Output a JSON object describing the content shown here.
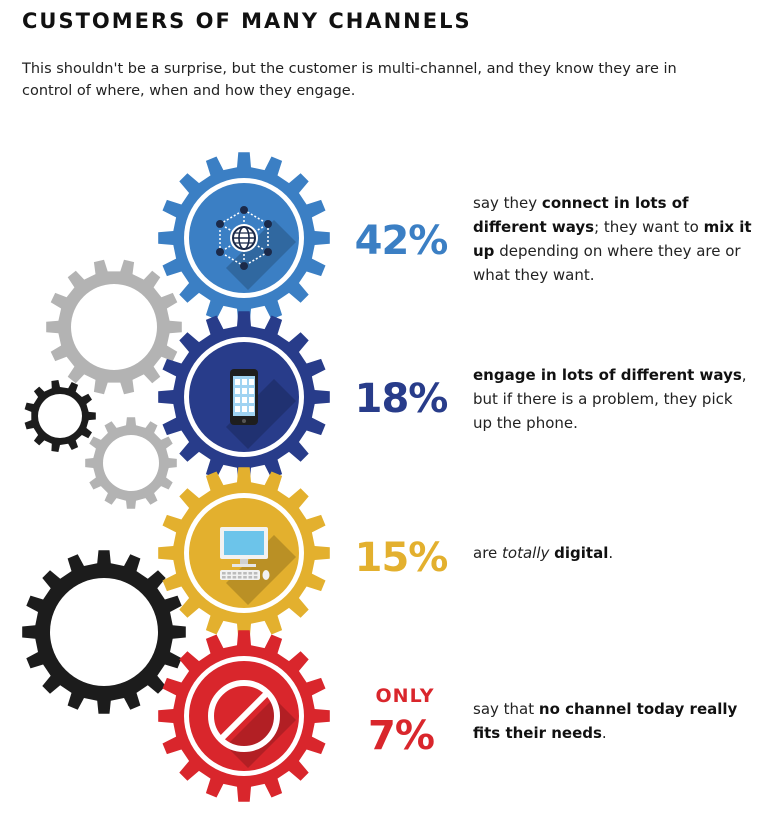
{
  "header": {
    "title": "CUSTOMERS OF MANY CHANNELS",
    "subtitle": "This shouldn't be a surprise, but the customer is multi-channel, and they know they are in control of where, when and how they engage."
  },
  "stats": [
    {
      "id": "stat-42",
      "value": "42%",
      "color": "#3b7fc4",
      "icon": "network-globe-icon",
      "desc": [
        {
          "t": "say they ",
          "b": false
        },
        {
          "t": "connect in lots of different ways",
          "b": true
        },
        {
          "t": "; they want to ",
          "b": false
        },
        {
          "t": "mix it up",
          "b": true
        },
        {
          "t": " depending on where they are or what they want.",
          "b": false
        }
      ]
    },
    {
      "id": "stat-18",
      "value": "18%",
      "color": "#283c8a",
      "icon": "smartphone-icon",
      "desc": [
        {
          "t": "engage in lots of different ways",
          "b": true
        },
        {
          "t": ", but if there is a problem, they pick up the phone.",
          "b": false
        }
      ]
    },
    {
      "id": "stat-15",
      "value": "15%",
      "color": "#e3b02e",
      "icon": "desktop-computer-icon",
      "desc": [
        {
          "t": "are ",
          "b": false
        },
        {
          "t": "totally",
          "i": true
        },
        {
          "t": " ",
          "b": false
        },
        {
          "t": "digital",
          "b": true
        },
        {
          "t": ".",
          "b": false
        }
      ]
    },
    {
      "id": "stat-7",
      "prefix": "ONLY",
      "value": "7%",
      "color": "#d9262c",
      "icon": "prohibited-icon",
      "desc": [
        {
          "t": "say that ",
          "b": false
        },
        {
          "t": "no channel today really fits their needs",
          "b": true
        },
        {
          "t": ".",
          "b": false
        }
      ]
    }
  ],
  "colors": {
    "grey_gear": "#b3b3b3",
    "black_gear": "#1c1c1c"
  }
}
